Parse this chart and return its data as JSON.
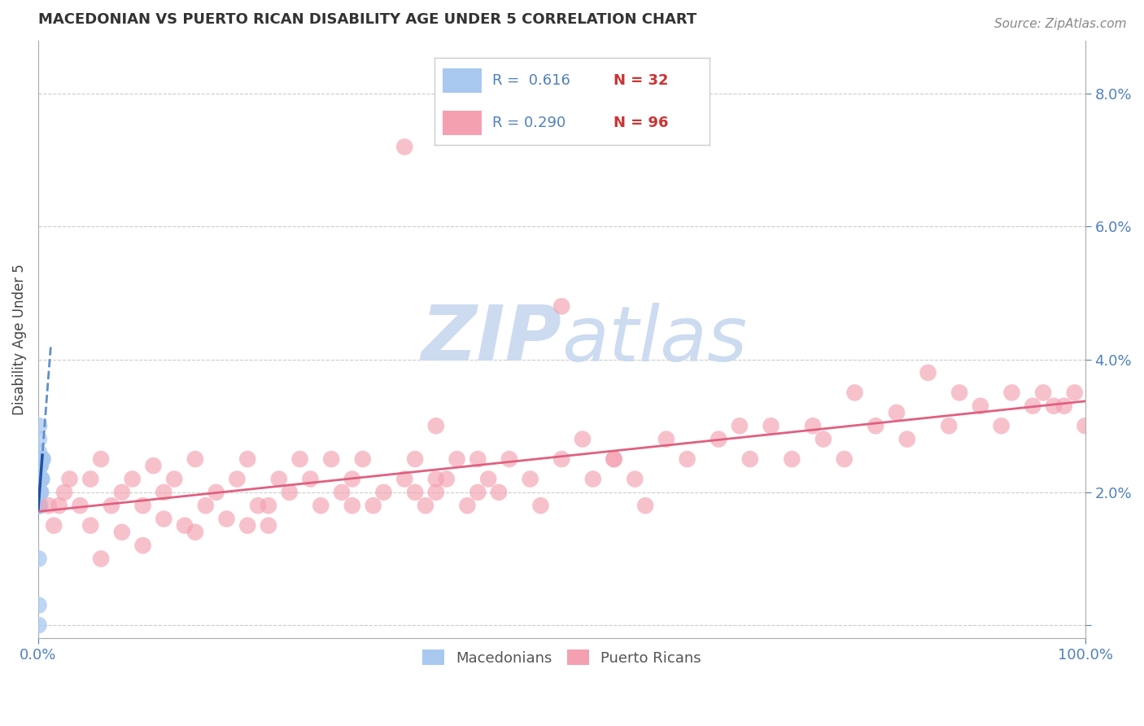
{
  "title": "MACEDONIAN VS PUERTO RICAN DISABILITY AGE UNDER 5 CORRELATION CHART",
  "source": "Source: ZipAtlas.com",
  "ylabel": "Disability Age Under 5",
  "xlim": [
    0,
    1.0
  ],
  "ylim": [
    -0.002,
    0.088
  ],
  "yticks": [
    0.0,
    0.02,
    0.04,
    0.06,
    0.08
  ],
  "ytick_labels": [
    "",
    "2.0%",
    "4.0%",
    "6.0%",
    "8.0%"
  ],
  "legend_r1": "R =  0.616",
  "legend_n1": "N = 32",
  "legend_r2": "R = 0.290",
  "legend_n2": "N = 96",
  "macedonian_color": "#a8c8f0",
  "puerto_rican_color": "#f4a0b0",
  "macedonian_line_color": "#6090c8",
  "puerto_rican_line_color": "#e06080",
  "axis_color": "#5080c0",
  "grid_color": "#cccccc",
  "watermark_color": "#c8d8f0",
  "macedonian_x": [
    0.0005,
    0.0005,
    0.0005,
    0.0005,
    0.0008,
    0.0008,
    0.0008,
    0.001,
    0.001,
    0.001,
    0.001,
    0.001,
    0.0012,
    0.0012,
    0.0012,
    0.0015,
    0.0015,
    0.0015,
    0.0018,
    0.0018,
    0.002,
    0.002,
    0.0022,
    0.0022,
    0.0025,
    0.0025,
    0.0028,
    0.003,
    0.0032,
    0.0035,
    0.004,
    0.0045
  ],
  "macedonian_y": [
    0.0,
    0.003,
    0.01,
    0.018,
    0.022,
    0.025,
    0.028,
    0.02,
    0.022,
    0.024,
    0.026,
    0.03,
    0.018,
    0.022,
    0.024,
    0.02,
    0.022,
    0.025,
    0.018,
    0.024,
    0.02,
    0.024,
    0.02,
    0.024,
    0.02,
    0.022,
    0.022,
    0.025,
    0.022,
    0.022,
    0.025,
    0.025
  ],
  "puerto_rican_x": [
    0.01,
    0.015,
    0.02,
    0.025,
    0.03,
    0.04,
    0.05,
    0.05,
    0.06,
    0.07,
    0.08,
    0.09,
    0.1,
    0.11,
    0.12,
    0.13,
    0.14,
    0.15,
    0.16,
    0.17,
    0.18,
    0.19,
    0.2,
    0.21,
    0.22,
    0.23,
    0.24,
    0.25,
    0.26,
    0.27,
    0.28,
    0.29,
    0.3,
    0.31,
    0.32,
    0.33,
    0.35,
    0.36,
    0.37,
    0.38,
    0.39,
    0.4,
    0.41,
    0.42,
    0.43,
    0.45,
    0.47,
    0.48,
    0.5,
    0.52,
    0.53,
    0.55,
    0.57,
    0.58,
    0.6,
    0.62,
    0.65,
    0.67,
    0.68,
    0.7,
    0.72,
    0.74,
    0.75,
    0.77,
    0.78,
    0.8,
    0.82,
    0.83,
    0.85,
    0.87,
    0.88,
    0.9,
    0.92,
    0.93,
    0.95,
    0.96,
    0.97,
    0.98,
    0.99,
    1.0,
    0.08,
    0.12,
    0.2,
    0.3,
    0.38,
    0.44,
    0.38,
    0.55,
    0.42,
    0.36,
    0.22,
    0.15,
    0.1,
    0.06,
    0.35,
    0.5
  ],
  "puerto_rican_y": [
    0.018,
    0.015,
    0.018,
    0.02,
    0.022,
    0.018,
    0.022,
    0.015,
    0.025,
    0.018,
    0.02,
    0.022,
    0.018,
    0.024,
    0.02,
    0.022,
    0.015,
    0.025,
    0.018,
    0.02,
    0.016,
    0.022,
    0.025,
    0.018,
    0.015,
    0.022,
    0.02,
    0.025,
    0.022,
    0.018,
    0.025,
    0.02,
    0.022,
    0.025,
    0.018,
    0.02,
    0.022,
    0.025,
    0.018,
    0.02,
    0.022,
    0.025,
    0.018,
    0.02,
    0.022,
    0.025,
    0.022,
    0.018,
    0.025,
    0.028,
    0.022,
    0.025,
    0.022,
    0.018,
    0.028,
    0.025,
    0.028,
    0.03,
    0.025,
    0.03,
    0.025,
    0.03,
    0.028,
    0.025,
    0.035,
    0.03,
    0.032,
    0.028,
    0.038,
    0.03,
    0.035,
    0.033,
    0.03,
    0.035,
    0.033,
    0.035,
    0.033,
    0.033,
    0.035,
    0.03,
    0.014,
    0.016,
    0.015,
    0.018,
    0.022,
    0.02,
    0.03,
    0.025,
    0.025,
    0.02,
    0.018,
    0.014,
    0.012,
    0.01,
    0.072,
    0.048
  ]
}
